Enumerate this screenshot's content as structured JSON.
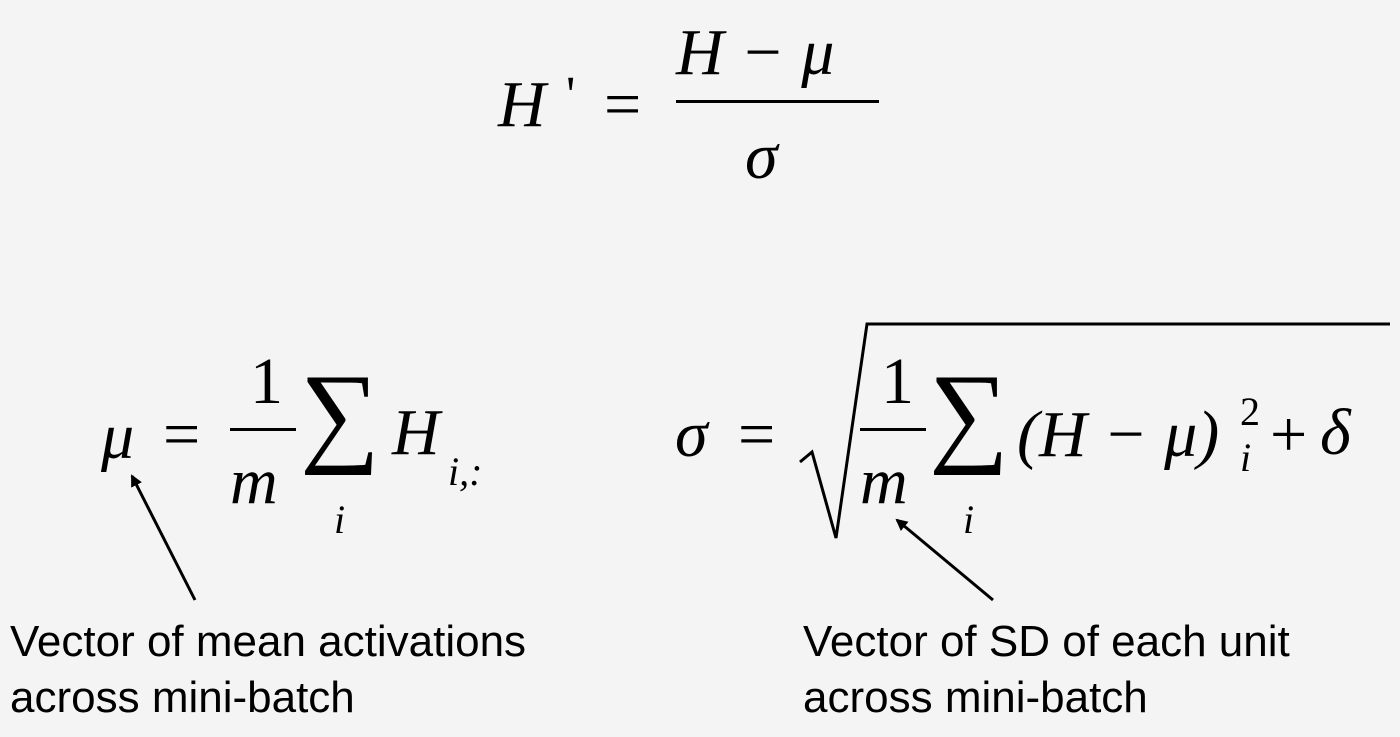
{
  "equation_main": {
    "lhs": "H",
    "prime": "'",
    "equals": "=",
    "numerator": "H − μ",
    "denominator": "σ"
  },
  "equation_mean": {
    "lhs": "μ",
    "equals": "=",
    "frac_num": "1",
    "frac_den": "m",
    "sum_symbol": "∑",
    "sum_index": "i",
    "term": "H",
    "term_subscript": "i,:"
  },
  "equation_sd": {
    "lhs": "σ",
    "equals": "=",
    "frac_num": "1",
    "frac_den": "m",
    "sum_symbol": "∑",
    "sum_index": "i",
    "term": "(H − μ)",
    "term_superscript": "2",
    "term_subscript": "i",
    "plus": "+",
    "delta": "δ"
  },
  "annotations": {
    "mean_line1": "Vector of mean activations",
    "mean_line2": "across mini-batch",
    "sd_line1": "Vector of SD of each unit",
    "sd_line2": "across mini-batch"
  }
}
